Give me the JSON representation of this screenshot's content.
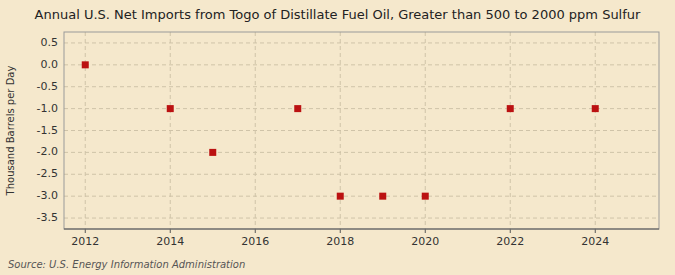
{
  "chart_data": {
    "type": "scatter",
    "title": "Annual U.S. Net Imports from Togo of Distillate Fuel Oil, Greater than 500 to 2000 ppm Sulfur",
    "ylabel": "Thousand Barrels per Day",
    "source": "Source: U.S. Energy Information Administration",
    "x": [
      2012,
      2014,
      2015,
      2017,
      2018,
      2019,
      2020,
      2022,
      2024
    ],
    "values": [
      0,
      -1,
      -2,
      -1,
      -3,
      -3,
      -3,
      -1,
      -1
    ],
    "color": "#bb1111",
    "marker": "square",
    "xlim": [
      2011.5,
      2025.5
    ],
    "ylim": [
      -3.75,
      0.75
    ],
    "xticks": [
      2012,
      2014,
      2016,
      2018,
      2020,
      2022,
      2024
    ],
    "yticks": [
      0.5,
      {
        "value": 0,
        "label": "0.0"
      },
      -0.5,
      {
        "value": -1,
        "label": "-1.0"
      },
      -1.5,
      {
        "value": -2,
        "label": "-2.0"
      },
      -2.5,
      {
        "value": -3,
        "label": "-3.0"
      },
      -3.5
    ],
    "grid": true
  }
}
